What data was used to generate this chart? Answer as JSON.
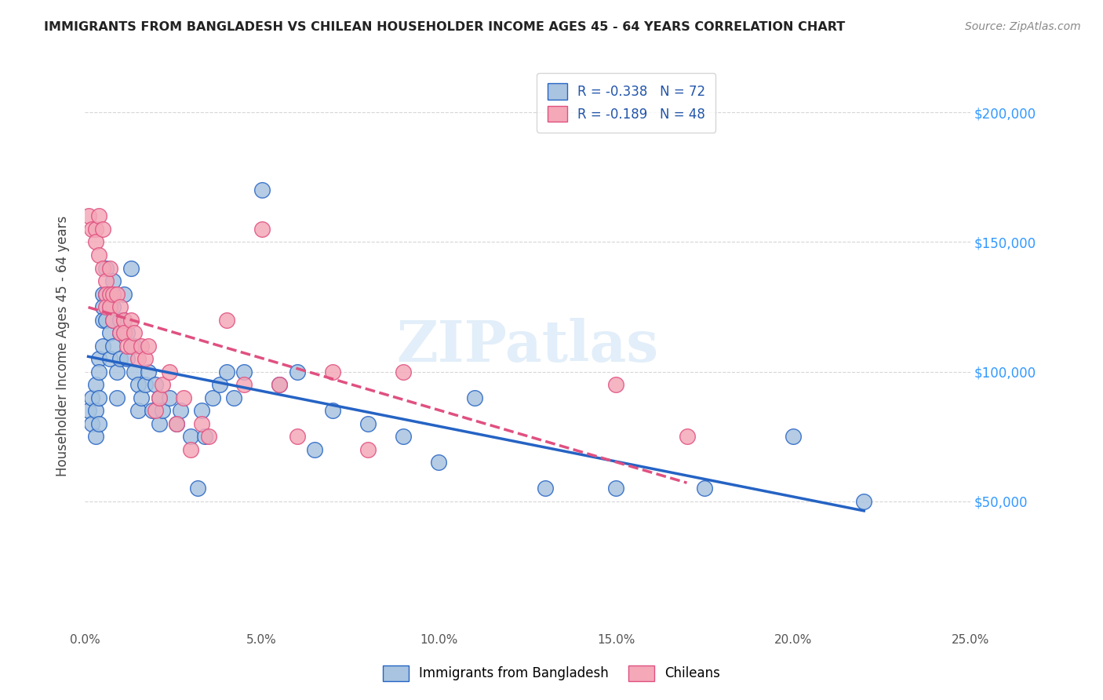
{
  "title": "IMMIGRANTS FROM BANGLADESH VS CHILEAN HOUSEHOLDER INCOME AGES 45 - 64 YEARS CORRELATION CHART",
  "source": "Source: ZipAtlas.com",
  "ylabel": "Householder Income Ages 45 - 64 years",
  "x_min": 0.0,
  "x_max": 0.25,
  "y_min": 0,
  "y_max": 220000,
  "x_tick_labels": [
    "0.0%",
    "5.0%",
    "10.0%",
    "15.0%",
    "20.0%",
    "25.0%"
  ],
  "x_tick_positions": [
    0.0,
    0.05,
    0.1,
    0.15,
    0.2,
    0.25
  ],
  "y_tick_labels": [
    "$50,000",
    "$100,000",
    "$150,000",
    "$200,000"
  ],
  "y_tick_positions": [
    50000,
    100000,
    150000,
    200000
  ],
  "legend_r1": "R = -0.338",
  "legend_n1": "N = 72",
  "legend_r2": "R = -0.189",
  "legend_n2": "N = 48",
  "color_bangladesh": "#a8c4e0",
  "color_chile": "#f4a8b8",
  "color_line_bangladesh": "#2563c4",
  "color_line_chile": "#e05080",
  "watermark": "ZIPatlas",
  "bangladesh_x": [
    0.001,
    0.002,
    0.002,
    0.003,
    0.003,
    0.003,
    0.004,
    0.004,
    0.004,
    0.004,
    0.005,
    0.005,
    0.005,
    0.005,
    0.006,
    0.006,
    0.006,
    0.007,
    0.007,
    0.007,
    0.008,
    0.008,
    0.008,
    0.008,
    0.009,
    0.009,
    0.01,
    0.01,
    0.01,
    0.011,
    0.011,
    0.012,
    0.012,
    0.013,
    0.014,
    0.014,
    0.015,
    0.015,
    0.016,
    0.017,
    0.018,
    0.019,
    0.02,
    0.021,
    0.021,
    0.022,
    0.024,
    0.026,
    0.027,
    0.03,
    0.032,
    0.033,
    0.034,
    0.036,
    0.038,
    0.04,
    0.042,
    0.045,
    0.05,
    0.055,
    0.06,
    0.065,
    0.07,
    0.08,
    0.09,
    0.1,
    0.11,
    0.13,
    0.15,
    0.175,
    0.2,
    0.22
  ],
  "bangladesh_y": [
    85000,
    90000,
    80000,
    95000,
    85000,
    75000,
    105000,
    100000,
    90000,
    80000,
    130000,
    125000,
    120000,
    110000,
    140000,
    130000,
    120000,
    125000,
    115000,
    105000,
    135000,
    125000,
    120000,
    110000,
    100000,
    90000,
    120000,
    115000,
    105000,
    130000,
    120000,
    115000,
    105000,
    140000,
    110000,
    100000,
    95000,
    85000,
    90000,
    95000,
    100000,
    85000,
    95000,
    90000,
    80000,
    85000,
    90000,
    80000,
    85000,
    75000,
    55000,
    85000,
    75000,
    90000,
    95000,
    100000,
    90000,
    100000,
    170000,
    95000,
    100000,
    70000,
    85000,
    80000,
    75000,
    65000,
    90000,
    55000,
    55000,
    55000,
    75000,
    50000
  ],
  "chile_x": [
    0.001,
    0.002,
    0.003,
    0.003,
    0.004,
    0.004,
    0.005,
    0.005,
    0.006,
    0.006,
    0.006,
    0.007,
    0.007,
    0.007,
    0.008,
    0.008,
    0.009,
    0.01,
    0.01,
    0.011,
    0.011,
    0.012,
    0.013,
    0.013,
    0.014,
    0.015,
    0.016,
    0.017,
    0.018,
    0.02,
    0.021,
    0.022,
    0.024,
    0.026,
    0.028,
    0.03,
    0.033,
    0.035,
    0.04,
    0.045,
    0.05,
    0.055,
    0.06,
    0.07,
    0.08,
    0.09,
    0.15,
    0.17
  ],
  "chile_y": [
    160000,
    155000,
    155000,
    150000,
    160000,
    145000,
    155000,
    140000,
    135000,
    130000,
    125000,
    140000,
    130000,
    125000,
    130000,
    120000,
    130000,
    125000,
    115000,
    120000,
    115000,
    110000,
    120000,
    110000,
    115000,
    105000,
    110000,
    105000,
    110000,
    85000,
    90000,
    95000,
    100000,
    80000,
    90000,
    70000,
    80000,
    75000,
    120000,
    95000,
    155000,
    95000,
    75000,
    100000,
    70000,
    100000,
    95000,
    75000
  ]
}
